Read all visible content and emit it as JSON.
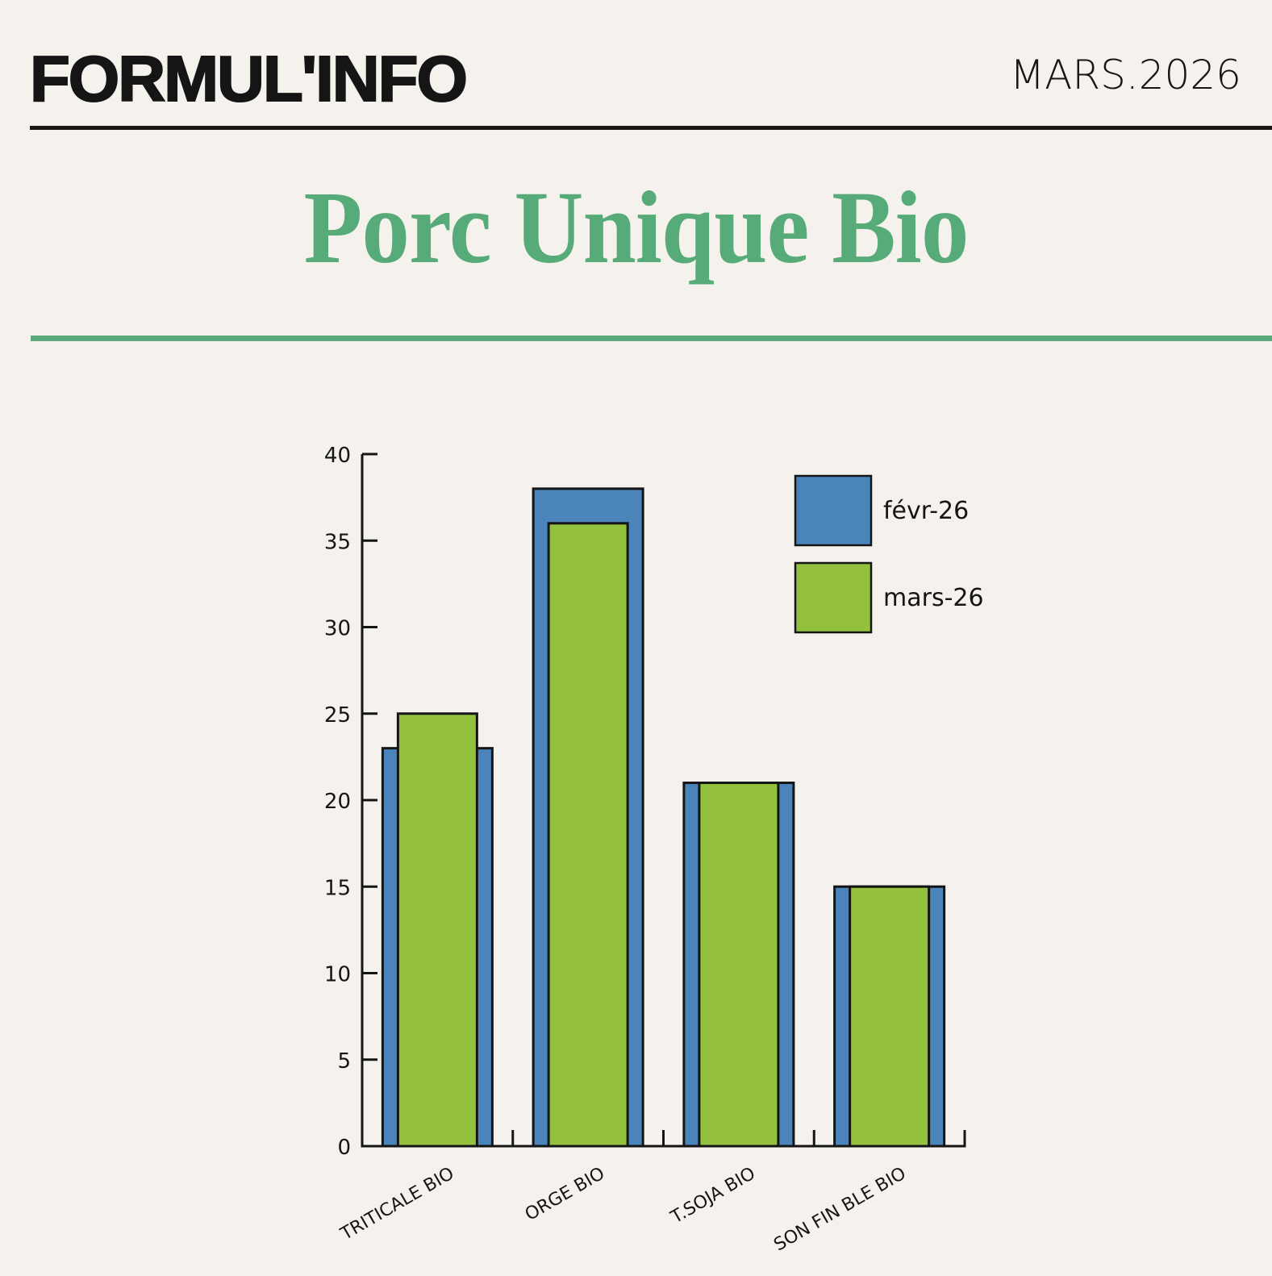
{
  "header": {
    "brand": "FORMUL'INFO",
    "issue_date": "MARS.2026"
  },
  "page_title": "Porc Unique Bio",
  "colors": {
    "background": "#f5f2ee",
    "title_green": "#57ab78",
    "series_fevr": "#4a84bb",
    "series_mars": "#93c13e",
    "ink": "#151515"
  },
  "chart_data": {
    "type": "bar",
    "title": "Porc Unique Bio",
    "xlabel": "",
    "ylabel": "",
    "categories": [
      "TRITICALE BIO",
      "ORGE BIO",
      "T.SOJA BIO",
      "SON FIN BLE BIO"
    ],
    "series": [
      {
        "name": "févr-26",
        "color": "#4a84bb",
        "values": [
          23,
          38,
          21,
          15
        ]
      },
      {
        "name": "mars-26",
        "color": "#93c13e",
        "values": [
          25,
          36,
          21,
          15
        ]
      }
    ],
    "ylim": [
      0,
      40
    ],
    "yticks": [
      0,
      5,
      10,
      15,
      20,
      25,
      30,
      35,
      40
    ],
    "grid": false,
    "legend_position": "top-right",
    "bar_layout": "overlapped (mars bar narrower, drawn in front of févr bar)"
  }
}
